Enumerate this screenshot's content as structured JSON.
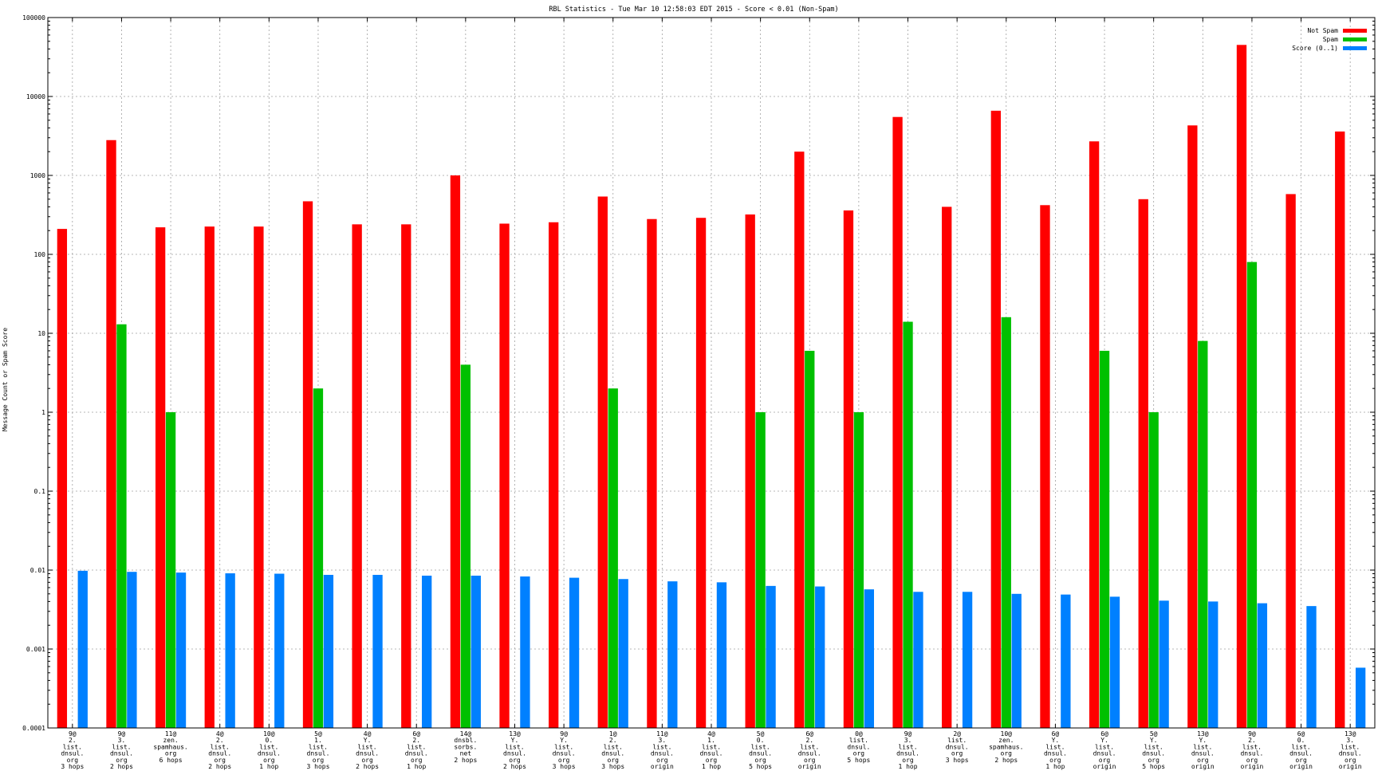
{
  "chart_data": {
    "type": "bar",
    "title": "RBL Statistics - Tue Mar 10 12:58:03 EDT 2015 - Score < 0.01 (Non-Spam)",
    "ylabel": "Message Count or Spam Score",
    "xlabel": "",
    "yscale": "log",
    "ylim": [
      0.0001,
      100000
    ],
    "yticks": [
      0.0001,
      0.001,
      0.01,
      0.1,
      1,
      10,
      100,
      1000,
      10000,
      100000
    ],
    "ytick_labels": [
      "0.0001",
      "0.001",
      "0.01",
      "0.1",
      "1",
      "10",
      "100",
      "1000",
      "10000",
      "100000"
    ],
    "grid": true,
    "legend_position": "top-right",
    "categories": [
      [
        "9@",
        "2.",
        "list.",
        "dnsul.",
        "org",
        "3 hops"
      ],
      [
        "9@",
        "3.",
        "list.",
        "dnsul.",
        "org",
        "2 hops"
      ],
      [
        "11@",
        "zen.",
        "spamhaus.",
        "org",
        "6 hops"
      ],
      [
        "4@",
        "2.",
        "list.",
        "dnsul.",
        "org",
        "2 hops"
      ],
      [
        "10@",
        "0.",
        "list.",
        "dnsul.",
        "org",
        "1 hop"
      ],
      [
        "5@",
        "1.",
        "list.",
        "dnsul.",
        "org",
        "3 hops"
      ],
      [
        "4@",
        "Y.",
        "list.",
        "dnsul.",
        "org",
        "2 hops"
      ],
      [
        "6@",
        "2.",
        "list.",
        "dnsul.",
        "org",
        "1 hop"
      ],
      [
        "14@",
        "dnsbl.",
        "sorbs.",
        "net",
        "2 hops"
      ],
      [
        "13@",
        "Y.",
        "list.",
        "dnsul.",
        "org",
        "2 hops"
      ],
      [
        "9@",
        "Y.",
        "list.",
        "dnsul.",
        "org",
        "3 hops"
      ],
      [
        "1@",
        "2.",
        "list.",
        "dnsul.",
        "org",
        "3 hops"
      ],
      [
        "11@",
        "3.",
        "list.",
        "dnsul.",
        "org",
        "origin"
      ],
      [
        "4@",
        "1.",
        "list.",
        "dnsul.",
        "org",
        "1 hop"
      ],
      [
        "5@",
        "0.",
        "list.",
        "dnsul.",
        "org",
        "5 hops"
      ],
      [
        "6@",
        "2.",
        "list.",
        "dnsul.",
        "org",
        "origin"
      ],
      [
        "0@",
        "list.",
        "dnsul.",
        "org",
        "5 hops"
      ],
      [
        "9@",
        "3.",
        "list.",
        "dnsul.",
        "org",
        "1 hop"
      ],
      [
        "2@",
        "list.",
        "dnsul.",
        "org",
        "3 hops"
      ],
      [
        "10@",
        "zen.",
        "spamhaus.",
        "org",
        "2 hops"
      ],
      [
        "6@",
        "Y.",
        "list.",
        "dnsul.",
        "org",
        "1 hop"
      ],
      [
        "6@",
        "Y.",
        "list.",
        "dnsul.",
        "org",
        "origin"
      ],
      [
        "5@",
        "Y.",
        "list.",
        "dnsul.",
        "org",
        "5 hops"
      ],
      [
        "13@",
        "Y.",
        "list.",
        "dnsul.",
        "org",
        "origin"
      ],
      [
        "9@",
        "2.",
        "list.",
        "dnsul.",
        "org",
        "origin"
      ],
      [
        "6@",
        "0.",
        "list.",
        "dnsul.",
        "org",
        "origin"
      ],
      [
        "13@",
        "3.",
        "list.",
        "dnsul.",
        "org",
        "origin"
      ]
    ],
    "series": [
      {
        "name": "Not Spam",
        "color": "#ff0000",
        "values": [
          210,
          2800,
          220,
          225,
          225,
          470,
          240,
          240,
          1000,
          245,
          255,
          540,
          280,
          290,
          320,
          2000,
          360,
          5500,
          400,
          6600,
          420,
          2700,
          500,
          4300,
          45000,
          580,
          3600
        ]
      },
      {
        "name": "Spam",
        "color": "#00c000",
        "values": [
          null,
          13,
          1,
          null,
          null,
          2,
          null,
          null,
          4,
          null,
          null,
          2,
          null,
          null,
          1,
          6,
          1,
          14,
          null,
          16,
          null,
          6,
          1,
          8,
          80,
          null,
          null
        ]
      },
      {
        "name": "Score (0..1)",
        "color": "#0080ff",
        "values": [
          0.0098,
          0.0095,
          0.0093,
          0.0091,
          0.009,
          0.0087,
          0.0087,
          0.0085,
          0.0085,
          0.0083,
          0.008,
          0.0077,
          0.0072,
          0.007,
          0.0063,
          0.0062,
          0.0057,
          0.0053,
          0.0053,
          0.005,
          0.0049,
          0.0046,
          0.0041,
          0.004,
          0.0038,
          0.0035,
          0.00058
        ]
      }
    ]
  }
}
